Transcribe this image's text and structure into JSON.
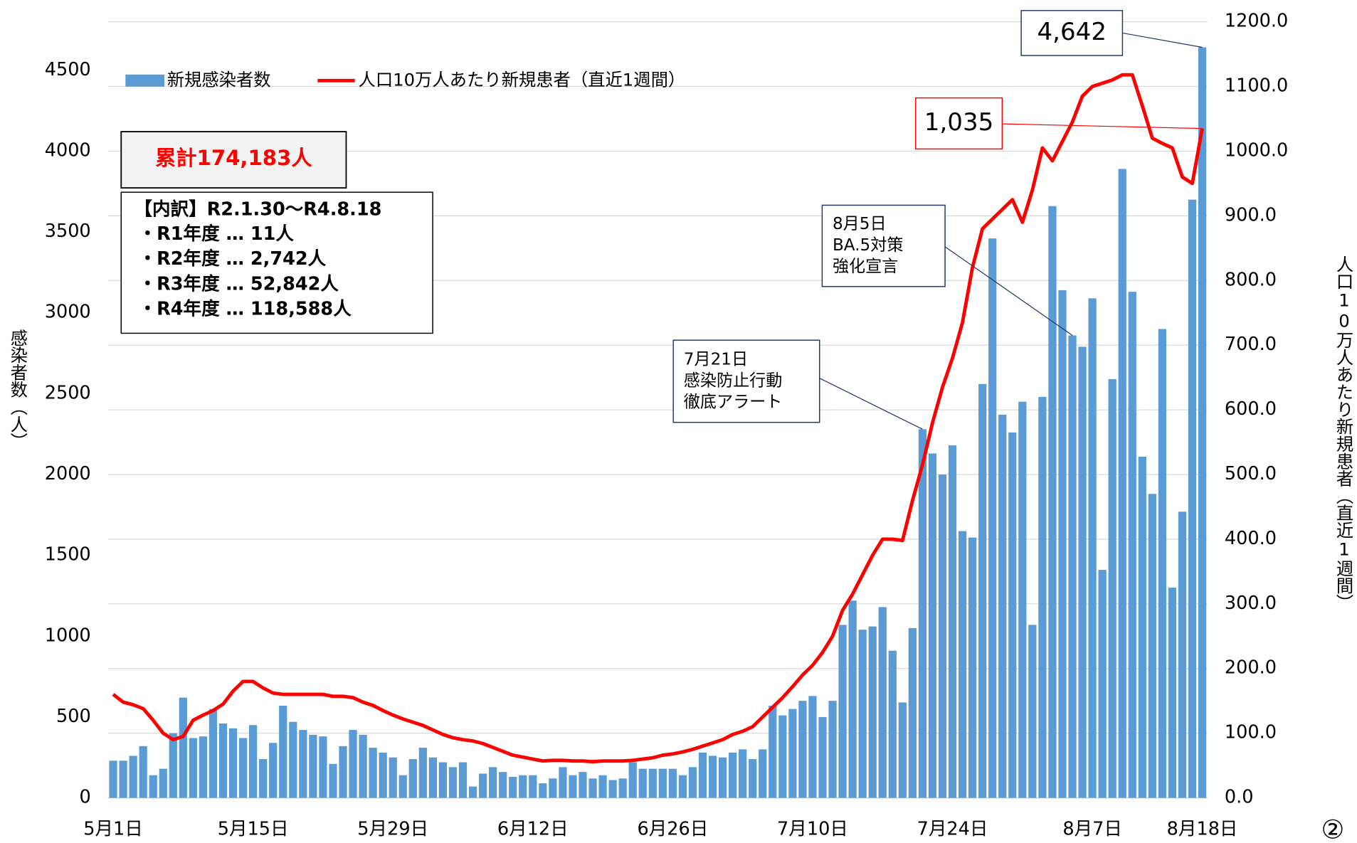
{
  "chart_data": {
    "type": "bar_line",
    "categories": [
      "5月1日",
      null,
      null,
      null,
      null,
      null,
      null,
      null,
      null,
      null,
      null,
      null,
      null,
      null,
      "5月15日",
      null,
      null,
      null,
      null,
      null,
      null,
      null,
      null,
      null,
      null,
      null,
      null,
      null,
      "5月29日",
      null,
      null,
      null,
      null,
      null,
      null,
      null,
      null,
      null,
      null,
      null,
      null,
      null,
      "6月12日",
      null,
      null,
      null,
      null,
      null,
      null,
      null,
      null,
      null,
      null,
      null,
      null,
      null,
      "6月26日",
      null,
      null,
      null,
      null,
      null,
      null,
      null,
      null,
      null,
      null,
      null,
      null,
      null,
      "7月10日",
      null,
      null,
      null,
      null,
      null,
      null,
      null,
      null,
      null,
      null,
      null,
      null,
      null,
      "7月24日",
      null,
      null,
      null,
      null,
      null,
      null,
      null,
      null,
      null,
      null,
      null,
      null,
      null,
      "8月7日",
      null,
      null,
      null,
      null,
      null,
      null,
      null,
      null,
      null,
      null,
      "8月18日"
    ],
    "series": [
      {
        "name": "新規感染者数",
        "type": "bar",
        "color": "#5b9bd5",
        "axis": "y",
        "values": [
          230,
          230,
          260,
          320,
          140,
          180,
          400,
          620,
          370,
          380,
          550,
          460,
          430,
          370,
          450,
          240,
          340,
          570,
          470,
          420,
          390,
          380,
          210,
          320,
          420,
          390,
          310,
          280,
          250,
          140,
          240,
          310,
          250,
          220,
          190,
          220,
          70,
          150,
          190,
          160,
          130,
          140,
          140,
          90,
          120,
          190,
          140,
          160,
          120,
          140,
          110,
          120,
          220,
          180,
          180,
          180,
          180,
          140,
          190,
          280,
          260,
          250,
          280,
          300,
          240,
          300,
          570,
          510,
          550,
          600,
          630,
          500,
          600,
          1070,
          1220,
          1040,
          1060,
          1180,
          910,
          590,
          1050,
          2280,
          2130,
          2000,
          2180,
          1650,
          1610,
          2560,
          3460,
          2370,
          2260,
          2450,
          1070,
          2480,
          3660,
          3140,
          2860,
          2790,
          3090,
          1410,
          2590,
          3890,
          3130,
          2110,
          1880,
          2900,
          1300,
          1770,
          3700,
          4642
        ]
      },
      {
        "name": "人口10万人あたり新規患者（直近1週間）",
        "type": "line",
        "color": "#ff0000",
        "axis": "y2",
        "values": [
          160,
          148,
          144,
          138,
          120,
          100,
          90,
          95,
          120,
          128,
          135,
          145,
          165,
          180,
          180,
          170,
          162,
          160,
          160,
          160,
          160,
          160,
          157,
          157,
          155,
          148,
          143,
          135,
          128,
          122,
          117,
          112,
          105,
          98,
          93,
          90,
          88,
          84,
          78,
          72,
          66,
          63,
          60,
          57,
          58,
          58,
          57,
          57,
          56,
          57,
          57,
          57,
          58,
          60,
          62,
          66,
          68,
          71,
          75,
          80,
          85,
          90,
          98,
          103,
          110,
          125,
          140,
          155,
          172,
          190,
          205,
          225,
          250,
          290,
          315,
          345,
          375,
          400,
          400,
          398,
          460,
          515,
          580,
          635,
          680,
          735,
          820,
          880,
          895,
          910,
          925,
          890,
          940,
          1005,
          985,
          1015,
          1045,
          1085,
          1100,
          1105,
          1110,
          1118,
          1118,
          1070,
          1020,
          1012,
          1005,
          960,
          950,
          1035
        ]
      }
    ],
    "ylim": [
      0,
      4800
    ],
    "yticks": [
      0,
      500,
      1000,
      1500,
      2000,
      2500,
      3000,
      3500,
      4000,
      4500
    ],
    "y2lim": [
      0,
      1200
    ],
    "y2ticks": [
      {
        "value": 0,
        "label": "0.0"
      },
      {
        "value": 100,
        "label": "100.0"
      },
      {
        "value": 200,
        "label": "200.0"
      },
      {
        "value": 300,
        "label": "300.0"
      },
      {
        "value": 400,
        "label": "400.0"
      },
      {
        "value": 500,
        "label": "500.0"
      },
      {
        "value": 600,
        "label": "600.0"
      },
      {
        "value": 700,
        "label": "700.0"
      },
      {
        "value": 800,
        "label": "800.0"
      },
      {
        "value": 900,
        "label": "900.0"
      },
      {
        "value": 1000,
        "label": "1000.0"
      },
      {
        "value": 1100,
        "label": "1100.0"
      },
      {
        "value": 1200,
        "label": "1200.0"
      }
    ],
    "ylabel": "感染者数（人）",
    "y2label": "人口10万人あたり新規患者（直近1週間）",
    "grid": true,
    "legend": "top-left",
    "total": "累計174,183人",
    "breakdown": {
      "title": "【内訳】R2.1.30～R4.8.18",
      "items": [
        "・R1年度 … 11人",
        "・R2年度 … 2,742人",
        "・R3年度 … 52,842人",
        "・R4年度 … 118,588人"
      ]
    },
    "annotations": [
      {
        "lines": [
          "4,642"
        ]
      },
      {
        "lines": [
          "1,035"
        ]
      },
      {
        "lines": [
          "8月5日",
          "BA.5対策",
          "強化宣言"
        ]
      },
      {
        "lines": [
          "7月21日",
          "感染防止行動",
          "徹底アラート"
        ]
      }
    ],
    "page_number": "②"
  }
}
